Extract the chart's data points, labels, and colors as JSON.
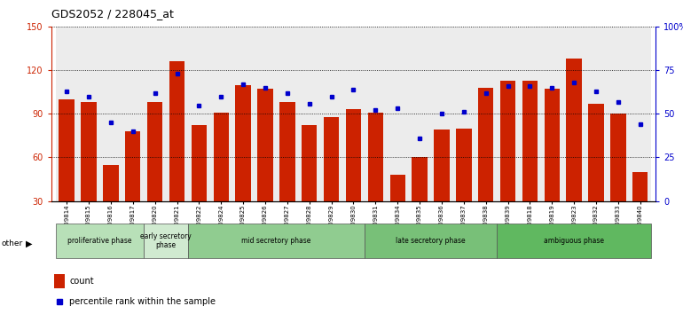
{
  "title": "GDS2052 / 228045_at",
  "samples": [
    "GSM109814",
    "GSM109815",
    "GSM109816",
    "GSM109817",
    "GSM109820",
    "GSM109821",
    "GSM109822",
    "GSM109824",
    "GSM109825",
    "GSM109826",
    "GSM109827",
    "GSM109828",
    "GSM109829",
    "GSM109830",
    "GSM109831",
    "GSM109834",
    "GSM109835",
    "GSM109836",
    "GSM109837",
    "GSM109838",
    "GSM109839",
    "GSM109818",
    "GSM109819",
    "GSM109823",
    "GSM109832",
    "GSM109833",
    "GSM109840"
  ],
  "counts": [
    100,
    98,
    55,
    78,
    98,
    126,
    82,
    91,
    110,
    107,
    98,
    82,
    88,
    93,
    91,
    48,
    60,
    79,
    80,
    108,
    113,
    113,
    107,
    128,
    97,
    90,
    50
  ],
  "percentiles": [
    63,
    60,
    45,
    40,
    62,
    73,
    55,
    60,
    67,
    65,
    62,
    56,
    60,
    64,
    52,
    53,
    36,
    50,
    51,
    62,
    66,
    66,
    65,
    68,
    63,
    57,
    44
  ],
  "phases": [
    {
      "label": "proliferative phase",
      "start": 0,
      "end": 4,
      "color": "#b8e0b8"
    },
    {
      "label": "early secretory\nphase",
      "start": 4,
      "end": 6,
      "color": "#d0ead0"
    },
    {
      "label": "mid secretory phase",
      "start": 6,
      "end": 14,
      "color": "#90cc90"
    },
    {
      "label": "late secretory phase",
      "start": 14,
      "end": 20,
      "color": "#78c078"
    },
    {
      "label": "ambiguous phase",
      "start": 20,
      "end": 27,
      "color": "#60b860"
    }
  ],
  "bar_color": "#cc2200",
  "dot_color": "#0000cc",
  "ylim_left": [
    30,
    150
  ],
  "ylim_right": [
    0,
    100
  ],
  "yticks_left": [
    30,
    60,
    90,
    120,
    150
  ],
  "yticks_right": [
    0,
    25,
    50,
    75,
    100
  ],
  "yticklabels_right": [
    "0",
    "25",
    "50",
    "75",
    "100%"
  ]
}
